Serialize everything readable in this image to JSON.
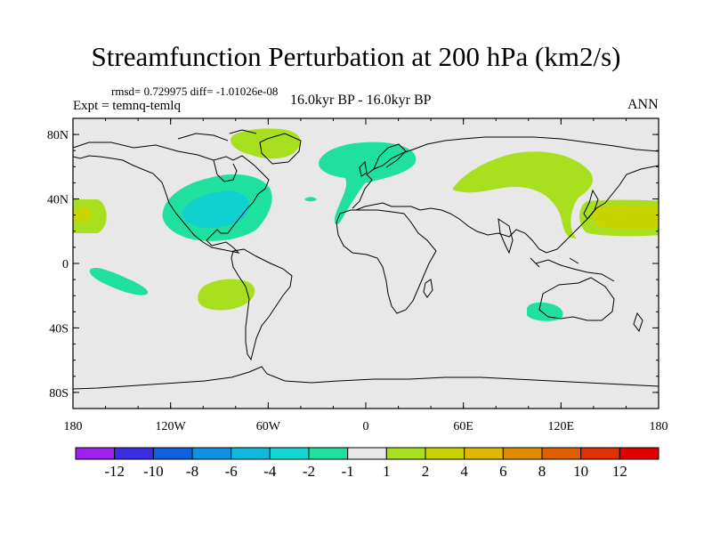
{
  "title": "Streamfunction Perturbation at 200 hPa (km2/s)",
  "stats": "rmsd= 0.729975 diff= -1.01026e-08",
  "left_subtitle": "Expt = temnq-temlq",
  "center_subtitle": "16.0kyr BP - 16.0kyr BP",
  "right_subtitle": "ANN",
  "lat_ticks": [
    {
      "label": "80N",
      "value": 80
    },
    {
      "label": "40N",
      "value": 40
    },
    {
      "label": "0",
      "value": 0
    },
    {
      "label": "40S",
      "value": -40
    },
    {
      "label": "80S",
      "value": -80
    }
  ],
  "lon_ticks": [
    {
      "label": "180",
      "value": -180
    },
    {
      "label": "120W",
      "value": -120
    },
    {
      "label": "60W",
      "value": -60
    },
    {
      "label": "0",
      "value": 0
    },
    {
      "label": "60E",
      "value": 60
    },
    {
      "label": "120E",
      "value": 120
    },
    {
      "label": "180",
      "value": 180
    }
  ],
  "colorbar": {
    "colors": [
      "#a020f0",
      "#3a2fe0",
      "#1060e0",
      "#1090e0",
      "#10b8e0",
      "#10d8d0",
      "#20e0a0",
      "#e8e8e8",
      "#a8e020",
      "#c8d400",
      "#e0b800",
      "#e08c00",
      "#e06000",
      "#e03000",
      "#e00000"
    ],
    "labels": [
      "-12",
      "-10",
      "-8",
      "-6",
      "-4",
      "-2",
      "-1",
      "1",
      "2",
      "4",
      "6",
      "8",
      "10",
      "12"
    ]
  },
  "anomalies": [
    {
      "name": "north-america-negative-anomaly",
      "level": "-2",
      "color": "#20e0a0"
    },
    {
      "name": "north-america-core-anomaly",
      "level": "-4",
      "color": "#10d0d0"
    },
    {
      "name": "north-atlantic-negative-anomaly",
      "level": "-2",
      "color": "#20e0a0"
    },
    {
      "name": "greenland-positive-anomaly",
      "level": "2",
      "color": "#a8e020"
    },
    {
      "name": "asia-positive-anomaly",
      "level": "2",
      "color": "#a8e020"
    },
    {
      "name": "pacific-west-positive-anomaly",
      "level": "2",
      "color": "#a8e020"
    },
    {
      "name": "pacific-east-positive-anomaly",
      "level": "4",
      "color": "#c8d400"
    },
    {
      "name": "south-pacific-negative-anomaly",
      "level": "-2",
      "color": "#20e0a0"
    },
    {
      "name": "south-atlantic-positive-anomaly",
      "level": "2",
      "color": "#a8e020"
    },
    {
      "name": "australia-negative-anomaly",
      "level": "-2",
      "color": "#20e0a0"
    }
  ]
}
